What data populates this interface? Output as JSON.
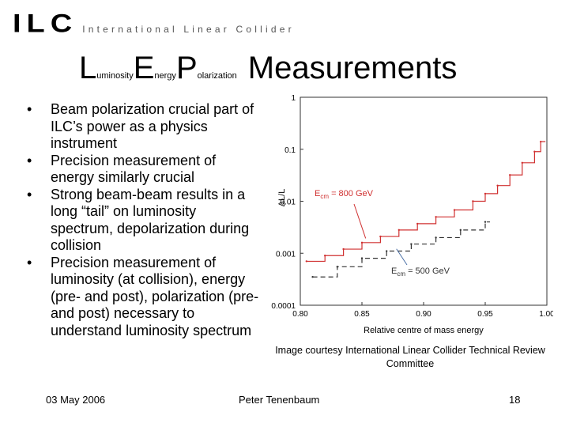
{
  "header": {
    "logo_mark": "ILC",
    "logo_text": "International Linear Collider"
  },
  "title": {
    "l_big": "L",
    "l_small": "uminosity",
    "e_big": "E",
    "e_small": "nergy",
    "p_big": "P",
    "p_small": "olarization",
    "main": "Measurements"
  },
  "bullets": [
    "Beam polarization crucial part of ILC’s power as a physics instrument",
    "Precision measurement of energy similarly crucial",
    "Strong beam-beam results in a long “tail” on luminosity spectrum, depolarization during collision",
    "Precision measurement of luminosity (at collision), energy (pre- and post), polarization (pre- and post) necessary to understand luminosity spectrum"
  ],
  "chart_data": {
    "type": "line",
    "xlabel": "Relative centre of mass energy",
    "ylabel": "ΔL/L",
    "xlim": [
      0.8,
      1.0
    ],
    "ylim": [
      0.0001,
      1
    ],
    "yscale": "log",
    "x_ticks": [
      "0.80",
      "0.85",
      "0.90",
      "0.95",
      "1.00"
    ],
    "y_ticks": [
      "1",
      "0.1",
      "0.01",
      "0.001",
      "0.0001"
    ],
    "series": [
      {
        "name": "Ecm = 800 GeV",
        "color": "#d03030",
        "x": [
          0.805,
          0.82,
          0.835,
          0.85,
          0.865,
          0.88,
          0.895,
          0.91,
          0.925,
          0.94,
          0.95,
          0.96,
          0.97,
          0.98,
          0.99,
          0.995
        ],
        "y": [
          0.0007,
          0.0009,
          0.0012,
          0.0016,
          0.0021,
          0.0028,
          0.0037,
          0.005,
          0.0068,
          0.01,
          0.014,
          0.02,
          0.032,
          0.055,
          0.09,
          0.14
        ]
      },
      {
        "name": "Ecm = 500 GeV",
        "color": "#333333",
        "x": [
          0.81,
          0.83,
          0.85,
          0.87,
          0.89,
          0.91,
          0.93,
          0.95
        ],
        "y": [
          0.00035,
          0.00055,
          0.0008,
          0.0011,
          0.0015,
          0.002,
          0.0028,
          0.004
        ]
      }
    ],
    "annotations": [
      {
        "label": "E",
        "sub": "cm",
        "rest": " = 800 GeV",
        "color": "#d03030",
        "x": 0.853,
        "y": 0.0018
      },
      {
        "label": "E",
        "sub": "cm",
        "rest": " = 500 GeV",
        "color": "#333333",
        "x": 0.878,
        "y": 0.0013
      }
    ]
  },
  "caption": "Image courtesy International Linear Collider Technical Review Committee",
  "footer": {
    "date": "03 May 2006",
    "author": "Peter Tenenbaum",
    "page": "18"
  }
}
